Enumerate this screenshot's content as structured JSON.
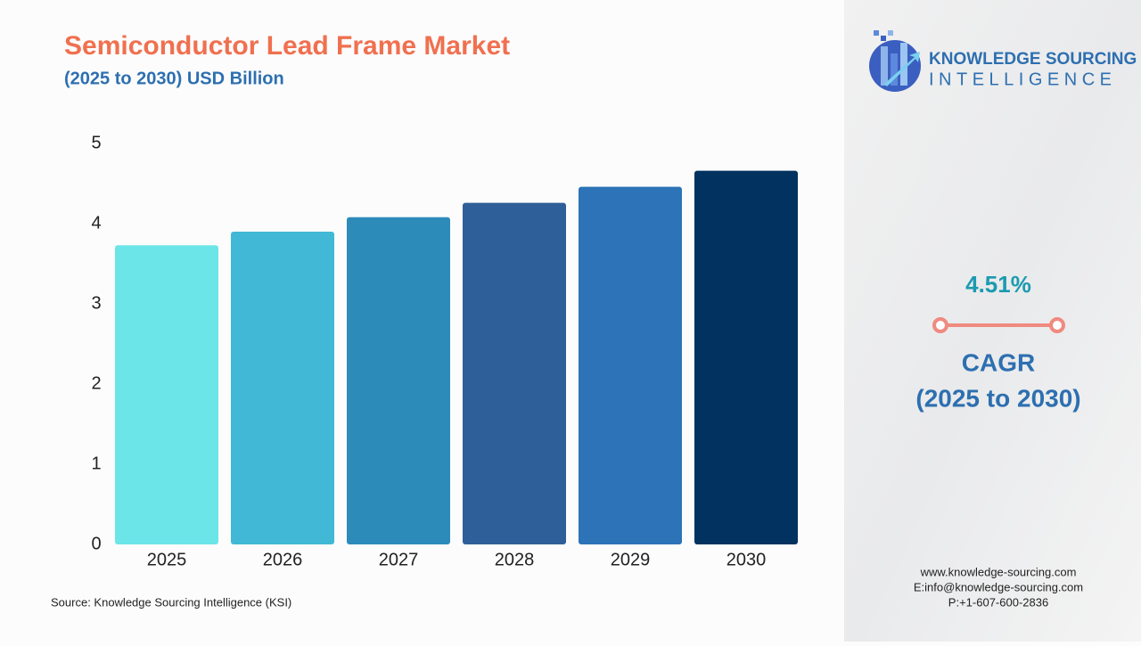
{
  "chart_data": {
    "type": "bar",
    "title": "Semiconductor Lead Frame Market",
    "subtitle": "(2025 to 2030) USD Billion",
    "categories": [
      "2025",
      "2026",
      "2027",
      "2028",
      "2029",
      "2030"
    ],
    "values": [
      3.73,
      3.9,
      4.08,
      4.26,
      4.46,
      4.66
    ],
    "colors": [
      "#6ce5e8",
      "#41b8d5",
      "#2d8bba",
      "#2f5f98",
      "#2c73b8",
      "#02325f"
    ],
    "ylim": [
      0,
      5
    ],
    "yticks": [
      0,
      1,
      2,
      3,
      4,
      5
    ],
    "grid": false
  },
  "source": "Source: Knowledge Sourcing Intelligence (KSI)",
  "brand": {
    "line1": "KNOWLEDGE SOURCING",
    "line2": "INTELLIGENCE"
  },
  "cagr": {
    "value": "4.51%",
    "label": "CAGR",
    "period": "(2025 to 2030)"
  },
  "contact": [
    "www.knowledge-sourcing.com",
    "E:info@knowledge-sourcing.com",
    "P:+1-607-600-2836"
  ]
}
